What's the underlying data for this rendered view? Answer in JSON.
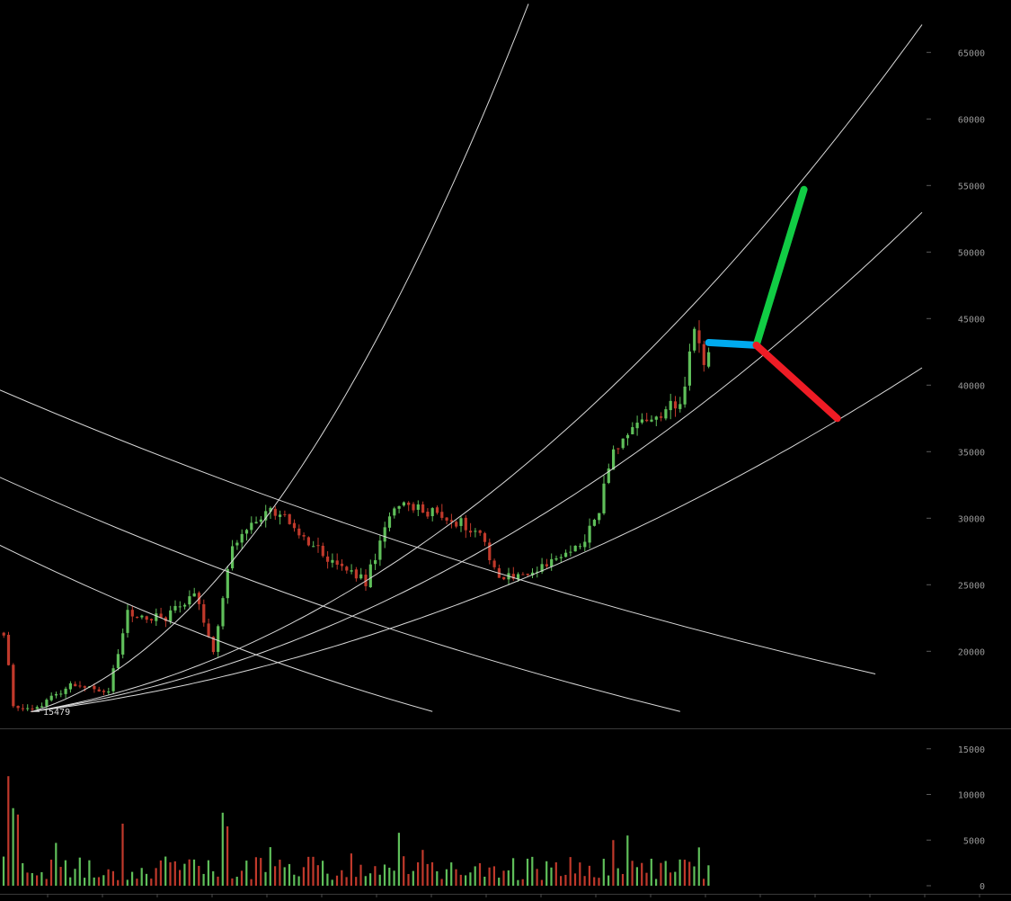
{
  "chart_data": [
    {
      "type": "candlestick",
      "pane": "price",
      "ylim": [
        14500,
        67000
      ],
      "y_ticks": [
        20000,
        25000,
        30000,
        35000,
        40000,
        45000,
        50000,
        55000,
        60000,
        65000
      ],
      "y_tick_labels": [
        "20000",
        "25000",
        "30000",
        "35000",
        "40000",
        "45000",
        "50000",
        "55000",
        "60000",
        "65000"
      ],
      "grid": false,
      "annotations": [
        {
          "type": "label",
          "text": "15479",
          "x": 6,
          "y": 15479
        }
      ],
      "colors": {
        "up": "#5fbf5a",
        "down": "#c0392b",
        "line": "#d9d9d9",
        "axis_text": "#9a9a9a"
      },
      "price_path_anchors": [
        {
          "x": 0,
          "y": 21500
        },
        {
          "x": 2,
          "y": 16000
        },
        {
          "x": 6,
          "y": 15479
        },
        {
          "x": 14,
          "y": 17600
        },
        {
          "x": 22,
          "y": 17000
        },
        {
          "x": 26,
          "y": 22800
        },
        {
          "x": 34,
          "y": 22500
        },
        {
          "x": 40,
          "y": 24500
        },
        {
          "x": 44,
          "y": 20200
        },
        {
          "x": 48,
          "y": 27800
        },
        {
          "x": 56,
          "y": 30800
        },
        {
          "x": 68,
          "y": 27000
        },
        {
          "x": 76,
          "y": 25200
        },
        {
          "x": 82,
          "y": 31000
        },
        {
          "x": 90,
          "y": 30500
        },
        {
          "x": 100,
          "y": 29000
        },
        {
          "x": 104,
          "y": 25500
        },
        {
          "x": 112,
          "y": 26000
        },
        {
          "x": 120,
          "y": 27800
        },
        {
          "x": 124,
          "y": 29500
        },
        {
          "x": 128,
          "y": 34800
        },
        {
          "x": 136,
          "y": 37800
        },
        {
          "x": 142,
          "y": 38500
        },
        {
          "x": 145,
          "y": 44200
        },
        {
          "x": 147,
          "y": 41800
        },
        {
          "x": 148,
          "y": 43000
        }
      ],
      "arc_fan": {
        "origin": {
          "x": 6,
          "y": 15479
        },
        "rising_arcs": [
          {
            "through": {
              "x": 57,
              "y": 31000
            }
          },
          {
            "through": {
              "x": 99,
              "y": 31000
            }
          },
          {
            "through": {
              "x": 133,
              "y": 35000
            }
          },
          {
            "through": {
              "x": 178,
              "y": 38000
            }
          }
        ],
        "falling_arcs": [
          {
            "from": {
              "x": 0,
              "y": 28500
            },
            "to": {
              "x": 90,
              "y": 15479
            }
          },
          {
            "from": {
              "x": 0,
              "y": 33500
            },
            "to": {
              "x": 142,
              "y": 15479
            }
          },
          {
            "from": {
              "x": 0,
              "y": 40000
            },
            "to": {
              "x": 183,
              "y": 18300
            }
          }
        ]
      },
      "projection_lines": [
        {
          "color": "#00aaee",
          "from": {
            "x": 148,
            "y": 43200
          },
          "to": {
            "x": 158,
            "y": 43000
          }
        },
        {
          "color": "#11cc44",
          "from": {
            "x": 158,
            "y": 43000
          },
          "to": {
            "x": 168,
            "y": 54700
          }
        },
        {
          "color": "#ee1c25",
          "from": {
            "x": 158,
            "y": 43000
          },
          "to": {
            "x": 175,
            "y": 37500
          }
        }
      ]
    },
    {
      "type": "bar",
      "pane": "volume",
      "ylim": [
        0,
        16500
      ],
      "y_ticks": [
        0,
        5000,
        10000,
        15000
      ],
      "y_tick_labels": [
        "0",
        "5000",
        "10000",
        "15000"
      ],
      "spikes": [
        {
          "x": 1,
          "y": 12000
        },
        {
          "x": 2,
          "y": 8500
        },
        {
          "x": 3,
          "y": 7800
        },
        {
          "x": 25,
          "y": 6800
        },
        {
          "x": 46,
          "y": 8000
        },
        {
          "x": 47,
          "y": 6500
        },
        {
          "x": 83,
          "y": 5800
        },
        {
          "x": 128,
          "y": 5000
        },
        {
          "x": 131,
          "y": 5500
        },
        {
          "x": 146,
          "y": 4200
        }
      ]
    }
  ]
}
